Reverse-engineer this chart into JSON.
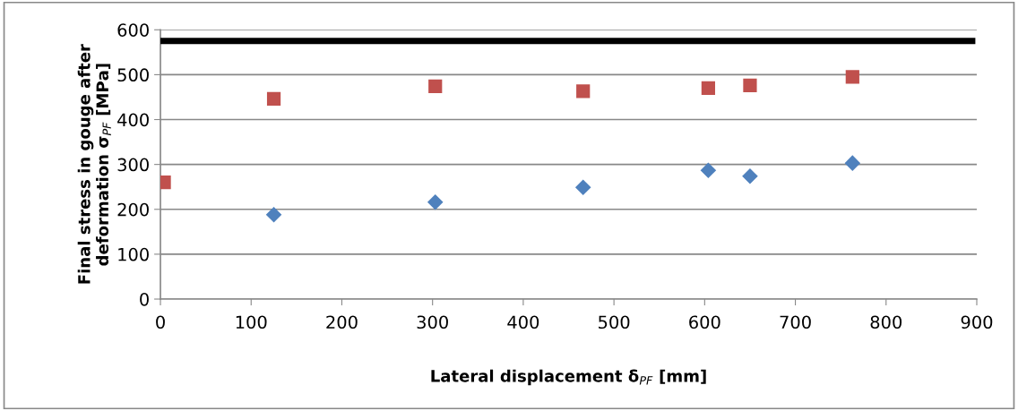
{
  "chart_data": {
    "type": "scatter",
    "xlabel": "Lateral displacement δ$_{PF}$ [mm]",
    "ylabel": "Final stress in gouge after\ndeformation σ$_{PF}$ [MPa]",
    "series": [
      {
        "type": "line",
        "color": "#000000",
        "marker": "none",
        "line_style": "solid",
        "x": [
          0,
          895
        ],
        "values": [
          575,
          575
        ]
      },
      {
        "type": "scatter",
        "color": "#c0504d",
        "marker": "square",
        "x": [
          4,
          125,
          303,
          466,
          604,
          650,
          763
        ],
        "values": [
          260,
          446,
          474,
          463,
          470,
          476,
          495
        ]
      },
      {
        "color": "#4f81bd",
        "marker": "diamond",
        "x": [
          125,
          303,
          466,
          604,
          650,
          763
        ],
        "values": [
          188,
          216,
          249,
          287,
          274,
          303
        ]
      }
    ],
    "xlim": [
      0,
      900
    ],
    "xticks": [
      0,
      100,
      200,
      300,
      400,
      500,
      600,
      700,
      800,
      900
    ],
    "ylim": [
      0,
      600
    ],
    "yticks": [
      0,
      100,
      200,
      300,
      400,
      500,
      600
    ],
    "grid": "y",
    "legend": false
  }
}
